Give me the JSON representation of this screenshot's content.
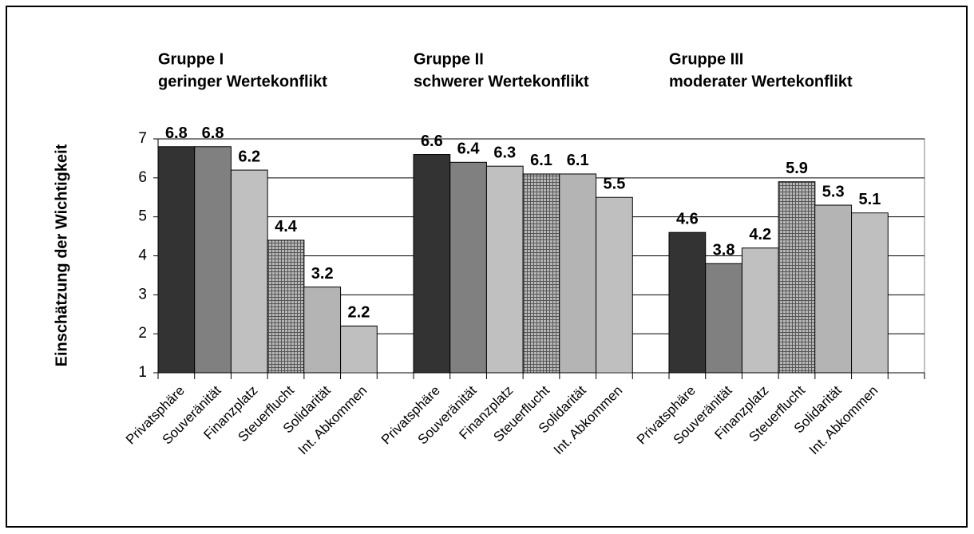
{
  "chart_data": {
    "type": "bar",
    "y_label": "Einschätzung der Wichtigkeit",
    "categories": [
      "Gruppe I",
      "Gruppe II",
      "Gruppe III"
    ],
    "category_subtitles": [
      "geringer Wertekonflikt",
      "schwerer Wertekonflikt",
      "moderater Wertekonflikt"
    ],
    "series": [
      {
        "name": "Privatsphäre",
        "color": "#333333",
        "pattern": "solid",
        "values": [
          6.8,
          6.6,
          4.6
        ]
      },
      {
        "name": "Souveränität",
        "color": "#808080",
        "pattern": "solid",
        "values": [
          6.8,
          6.4,
          3.8
        ]
      },
      {
        "name": "Finanzplatz",
        "color": "#c0c0c0",
        "pattern": "solid",
        "values": [
          6.2,
          6.3,
          4.2
        ]
      },
      {
        "name": "Steuerflucht",
        "color": "#b8b8b8",
        "pattern": "crosshatch",
        "values": [
          4.4,
          6.1,
          5.9
        ]
      },
      {
        "name": "Solidarität",
        "color": "#ffffff",
        "pattern": "vertical",
        "values": [
          3.2,
          6.1,
          5.3
        ]
      },
      {
        "name": "Int. Abkommen",
        "color": "#ffffff",
        "pattern": "horizontal",
        "values": [
          2.2,
          5.5,
          5.1
        ]
      }
    ],
    "ylim": [
      1,
      7
    ],
    "yticks": [
      1,
      2,
      3,
      4,
      5,
      6,
      7
    ],
    "grid": true
  }
}
